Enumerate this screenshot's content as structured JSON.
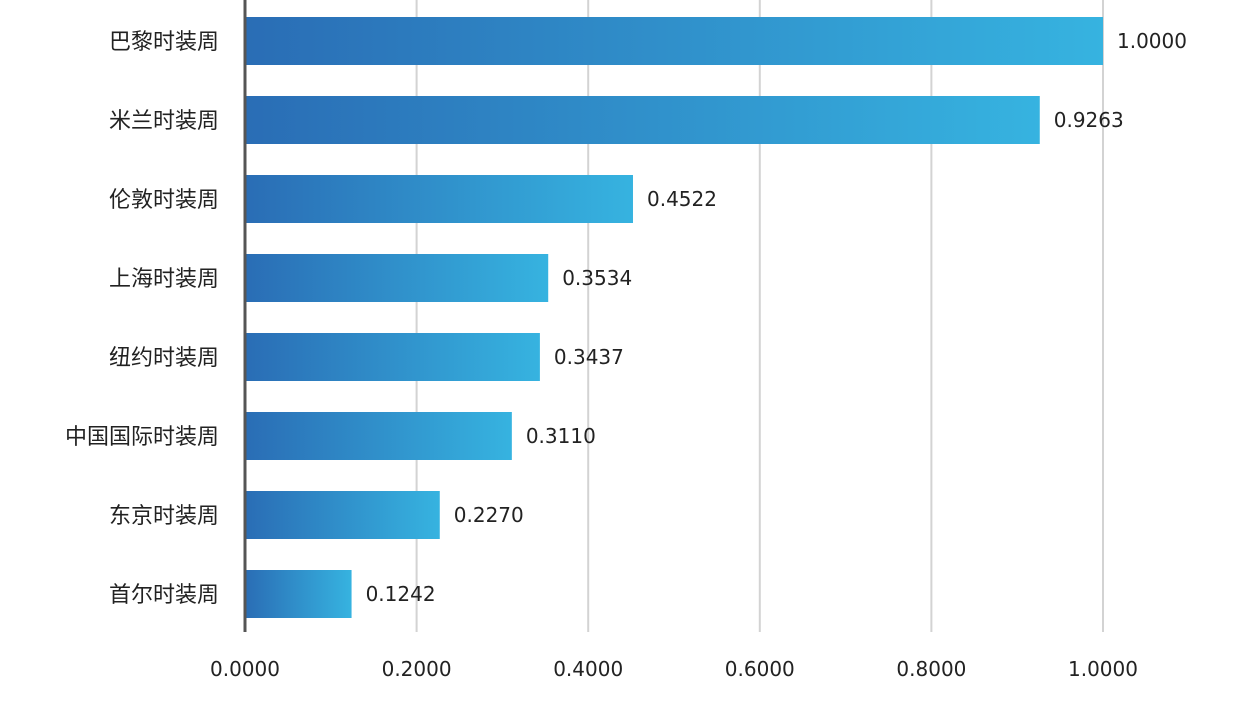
{
  "chart_data": {
    "type": "bar",
    "orientation": "horizontal",
    "categories": [
      "巴黎时装周",
      "米兰时装周",
      "伦敦时装周",
      "上海时装周",
      "纽约时装周",
      "中国国际时装周",
      "东京时装周",
      "首尔时装周"
    ],
    "values": [
      1.0,
      0.9263,
      0.4522,
      0.3534,
      0.3437,
      0.311,
      0.227,
      0.1242
    ],
    "value_labels": [
      "1.0000",
      "0.9263",
      "0.4522",
      "0.3534",
      "0.3437",
      "0.3110",
      "0.2270",
      "0.1242"
    ],
    "x_ticks": [
      "0.0000",
      "0.2000",
      "0.4000",
      "0.6000",
      "0.8000",
      "1.0000"
    ],
    "xlim": [
      0,
      1.0
    ],
    "title": "",
    "xlabel": "",
    "ylabel": "",
    "grid": "vertical",
    "legend": "none",
    "colors": {
      "bar_gradient_start": "#2a6db5",
      "bar_gradient_end": "#36b3e0",
      "grid": "#d3d3d3",
      "axis": "#555555",
      "text": "#222222"
    }
  }
}
